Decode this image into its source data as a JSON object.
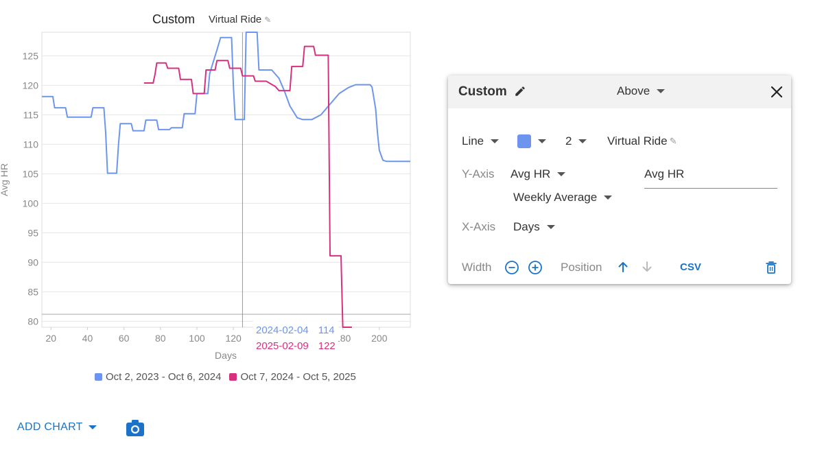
{
  "chart": {
    "title": "Custom",
    "activity": "Virtual Ride",
    "tooltip": [
      {
        "date": "2024-02-04",
        "value": "114",
        "color": "#6d95ef"
      },
      {
        "date": "2025-02-09",
        "value": "122",
        "color": "#d6307f"
      }
    ],
    "legend": [
      {
        "label": "Oct 2, 2023 - Oct 6, 2024",
        "color": "#6d95ef"
      },
      {
        "label": "Oct 7, 2024 - Oct 5, 2025",
        "color": "#d6307f"
      }
    ]
  },
  "chart_data": {
    "type": "line",
    "xlabel": "Days",
    "ylabel": "Avg HR",
    "xlim": [
      15,
      217
    ],
    "ylim": [
      79,
      129
    ],
    "xticks": [
      20,
      40,
      60,
      80,
      100,
      120,
      140,
      160,
      180,
      200
    ],
    "yticks": [
      80,
      85,
      90,
      95,
      100,
      105,
      110,
      115,
      120,
      125
    ],
    "grid": true,
    "cursor_x": 125,
    "reference_y": 81.2,
    "series": [
      {
        "name": "Oct 2, 2023 - Oct 6, 2024",
        "color": "#6d95ef",
        "points": [
          [
            15,
            118.1
          ],
          [
            21,
            118.1
          ],
          [
            22,
            116.2
          ],
          [
            28,
            116.2
          ],
          [
            29,
            114.6
          ],
          [
            42,
            114.6
          ],
          [
            43,
            116.2
          ],
          [
            49,
            116.2
          ],
          [
            50,
            112
          ],
          [
            51,
            105.1
          ],
          [
            56,
            105.1
          ],
          [
            57,
            110
          ],
          [
            58,
            113.5
          ],
          [
            64,
            113.5
          ],
          [
            65,
            112.3
          ],
          [
            71,
            112.3
          ],
          [
            72,
            114.1
          ],
          [
            78,
            114.1
          ],
          [
            79,
            112.5
          ],
          [
            85,
            112.5
          ],
          [
            86,
            112.8
          ],
          [
            92,
            112.8
          ],
          [
            93,
            115.2
          ],
          [
            99,
            115.2
          ],
          [
            100,
            118.6
          ],
          [
            106,
            118.6
          ],
          [
            107,
            122
          ],
          [
            111,
            126
          ],
          [
            113,
            128.1
          ],
          [
            119,
            128.1
          ],
          [
            120,
            120
          ],
          [
            121,
            114.2
          ],
          [
            126,
            114.2
          ],
          [
            127,
            129
          ],
          [
            133,
            129
          ],
          [
            134,
            122.6
          ],
          [
            141,
            122.6
          ],
          [
            145,
            121.2
          ],
          [
            148,
            119
          ],
          [
            151,
            116.5
          ],
          [
            155,
            114.5
          ],
          [
            158,
            114.2
          ],
          [
            163,
            114.2
          ],
          [
            168,
            115
          ],
          [
            173,
            116.8
          ],
          [
            178,
            118.6
          ],
          [
            183,
            119.6
          ],
          [
            187,
            120.1
          ],
          [
            195,
            120.1
          ],
          [
            196,
            119.7
          ],
          [
            198,
            116
          ],
          [
            199,
            112
          ],
          [
            200,
            109
          ],
          [
            202,
            107.3
          ],
          [
            204,
            107.1
          ],
          [
            217,
            107.1
          ]
        ]
      },
      {
        "name": "Oct 7, 2024 - Oct 5, 2025",
        "color": "#d6307f",
        "points": [
          [
            71,
            120.4
          ],
          [
            76,
            120.4
          ],
          [
            77,
            121.8
          ],
          [
            78,
            123.8
          ],
          [
            83,
            123.8
          ],
          [
            84,
            122.9
          ],
          [
            90,
            122.9
          ],
          [
            91,
            121
          ],
          [
            97,
            121
          ],
          [
            98,
            118.6
          ],
          [
            104,
            118.6
          ],
          [
            105,
            122.6
          ],
          [
            110,
            122.6
          ],
          [
            111,
            124.2
          ],
          [
            117,
            124.2
          ],
          [
            118,
            122.9
          ],
          [
            124,
            122.9
          ],
          [
            125,
            121.6
          ],
          [
            131,
            121.6
          ],
          [
            132,
            120.7
          ],
          [
            138,
            120.7
          ],
          [
            143,
            119.8
          ],
          [
            145,
            119.1
          ],
          [
            151,
            119.1
          ],
          [
            152,
            123.2
          ],
          [
            158,
            123.2
          ],
          [
            159,
            126.6
          ],
          [
            164,
            126.6
          ],
          [
            165,
            125.1
          ],
          [
            172,
            125.1
          ],
          [
            173,
            91.1
          ],
          [
            179,
            91.1
          ],
          [
            180,
            79
          ],
          [
            185,
            79
          ]
        ]
      }
    ]
  },
  "actions": {
    "add_chart_label": "ADD CHART"
  },
  "panel": {
    "title": "Custom",
    "position_label": "Above",
    "line_type": "Line",
    "line_color": "#6d95ef",
    "line_width": "2",
    "activity": "Virtual Ride",
    "yaxis_label": "Y-Axis",
    "yaxis_metric": "Avg HR",
    "yaxis_aggregate": "Weekly Average",
    "yaxis_title_value": "Avg HR",
    "xaxis_label": "X-Axis",
    "xaxis_metric": "Days",
    "width_label": "Width",
    "position_text": "Position",
    "csv_label": "CSV"
  }
}
